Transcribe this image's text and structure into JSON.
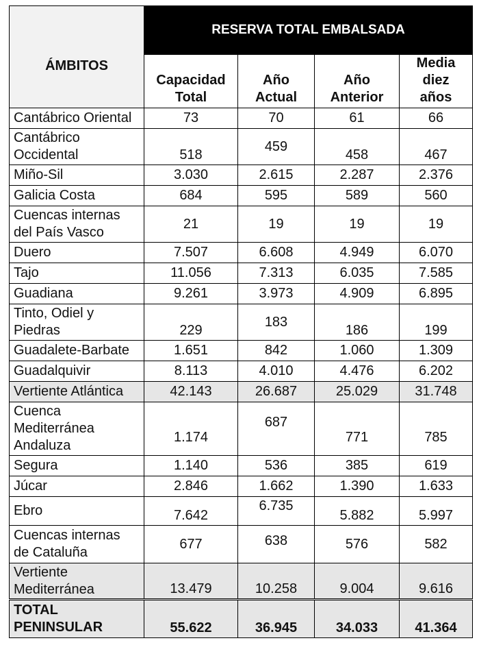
{
  "header": {
    "ambitos": "ÁMBITOS",
    "group": "RESERVA TOTAL EMBALSADA",
    "columns": [
      [
        "Capacidad",
        "Total"
      ],
      [
        "Año",
        "Actual"
      ],
      [
        "Año",
        "Anterior"
      ],
      [
        "Media",
        "diez",
        "años"
      ]
    ]
  },
  "rows": [
    {
      "name": [
        "Cantábrico Oriental"
      ],
      "values": [
        "73",
        "70",
        "61",
        "66"
      ]
    },
    {
      "name": [
        "Cantábrico",
        "Occidental"
      ],
      "values": [
        "518",
        "459",
        "458",
        "467"
      ]
    },
    {
      "name": [
        "Miño-Sil"
      ],
      "values": [
        "3.030",
        "2.615",
        "2.287",
        "2.376"
      ]
    },
    {
      "name": [
        "Galicia Costa"
      ],
      "values": [
        "684",
        "595",
        "589",
        "560"
      ]
    },
    {
      "name": [
        "Cuencas internas",
        "del País Vasco"
      ],
      "values": [
        "21",
        "19",
        "19",
        "19"
      ]
    },
    {
      "name": [
        "Duero"
      ],
      "values": [
        "7.507",
        "6.608",
        "4.949",
        "6.070"
      ]
    },
    {
      "name": [
        "Tajo"
      ],
      "values": [
        "11.056",
        "7.313",
        "6.035",
        "7.585"
      ]
    },
    {
      "name": [
        "Guadiana"
      ],
      "values": [
        "9.261",
        "3.973",
        "4.909",
        "6.895"
      ]
    },
    {
      "name": [
        "Tinto, Odiel y",
        "Piedras"
      ],
      "values": [
        "229",
        "183",
        "186",
        "199"
      ]
    },
    {
      "name": [
        "Guadalete-Barbate"
      ],
      "values": [
        "1.651",
        "842",
        "1.060",
        "1.309"
      ]
    },
    {
      "name": [
        "Guadalquivir"
      ],
      "values": [
        "8.113",
        "4.010",
        "4.476",
        "6.202"
      ]
    },
    {
      "name": [
        "Vertiente Atlántica"
      ],
      "values": [
        "42.143",
        "26.687",
        "25.029",
        "31.748"
      ]
    },
    {
      "name": [
        "Cuenca",
        "Mediterránea",
        "Andaluza"
      ],
      "values": [
        "1.174",
        "687",
        "771",
        "785"
      ]
    },
    {
      "name": [
        "Segura"
      ],
      "values": [
        "1.140",
        "536",
        "385",
        "619"
      ]
    },
    {
      "name": [
        "Júcar"
      ],
      "values": [
        "2.846",
        "1.662",
        "1.390",
        "1.633"
      ]
    },
    {
      "name": [
        "Ebro"
      ],
      "values": [
        "7.642",
        "6.735",
        "5.882",
        "5.997"
      ]
    },
    {
      "name": [
        "Cuencas internas",
        "de Cataluña"
      ],
      "values": [
        "677",
        "638",
        "576",
        "582"
      ]
    },
    {
      "name": [
        "Vertiente",
        "Mediterránea"
      ],
      "values": [
        "13.479",
        "10.258",
        "9.004",
        "9.616"
      ]
    },
    {
      "name": [
        "TOTAL",
        "PENINSULAR"
      ],
      "values": [
        "55.622",
        "36.945",
        "34.033",
        "41.364"
      ]
    }
  ]
}
